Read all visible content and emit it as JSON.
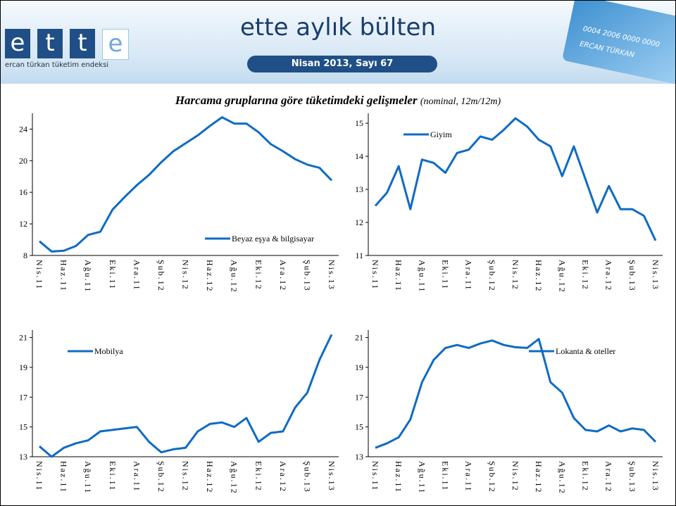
{
  "header": {
    "logo": [
      "e",
      "t",
      "t",
      "e"
    ],
    "logo_subtitle": "ercan türkan tüketim endeksi",
    "title": "ette aylık bülten",
    "subtitle": "Nisan 2013, Sayı 67",
    "card_number": "0004 2006 0000 0000",
    "card_name": "ERCAN TÜRKAN"
  },
  "title": "Harcama gruplarına göre tüketimdeki gelişmeler",
  "subtitle": "(nominal, 12m/12m)",
  "chart_data": [
    {
      "type": "line",
      "categories": [
        "Nis.11",
        null,
        "Haz.11",
        null,
        "Ağu.11",
        null,
        "Eki.11",
        null,
        "Ara.11",
        null,
        "Şub.12",
        null,
        "Nis.12",
        null,
        "Haz.12",
        null,
        "Ağu.12",
        null,
        "Eki.12",
        null,
        "Ara.12",
        null,
        "Şub.13",
        null,
        "Nis.13"
      ],
      "series": [
        {
          "name": "Beyaz eşya & bilgisayar",
          "color": "#0e6bc4",
          "values": [
            9.8,
            8.5,
            8.6,
            9.2,
            10.6,
            11.0,
            13.8,
            15.4,
            16.9,
            18.2,
            19.8,
            21.2,
            22.2,
            23.2,
            24.4,
            25.5,
            24.7,
            24.7,
            23.6,
            22.1,
            21.2,
            20.2,
            19.5,
            19.1,
            17.5
          ]
        }
      ],
      "ylim": [
        8,
        26
      ],
      "yticks": [
        8,
        12,
        16,
        20,
        24
      ],
      "legend": "lower right"
    },
    {
      "type": "line",
      "categories": [
        "Nis.11",
        null,
        "Haz.11",
        null,
        "Ağu.11",
        null,
        "Eki.11",
        null,
        "Ara.11",
        null,
        "Şub.12",
        null,
        "Nis.12",
        null,
        "Haz.12",
        null,
        "Ağu.12",
        null,
        "Eki.12",
        null,
        "Ara.12",
        null,
        "Şub.13",
        null,
        "Nis.13"
      ],
      "series": [
        {
          "name": "Giyim",
          "color": "#0e6bc4",
          "values": [
            12.5,
            12.9,
            13.7,
            12.4,
            13.9,
            13.8,
            13.5,
            14.1,
            14.2,
            14.6,
            14.5,
            14.8,
            15.15,
            14.9,
            14.5,
            14.3,
            13.4,
            14.3,
            13.3,
            12.3,
            13.1,
            12.4,
            12.4,
            12.2,
            11.45
          ]
        }
      ],
      "ylim": [
        11,
        15.3
      ],
      "yticks": [
        11,
        12,
        13,
        14,
        15
      ],
      "legend": "upper left"
    },
    {
      "type": "line",
      "categories": [
        "Nis.11",
        null,
        "Haz.11",
        null,
        "Ağu.11",
        null,
        "Eki.11",
        null,
        "Ara.11",
        null,
        "Şub.12",
        null,
        "Nis.12",
        null,
        "Haz.12",
        null,
        "Ağu.12",
        null,
        "Eki.12",
        null,
        "Ara.12",
        null,
        "Şub.13",
        null,
        "Nis.13"
      ],
      "series": [
        {
          "name": "Mobilya",
          "color": "#0e6bc4",
          "values": [
            13.7,
            13.0,
            13.6,
            13.9,
            14.1,
            14.7,
            14.8,
            14.9,
            15.0,
            14.0,
            13.3,
            13.5,
            13.6,
            14.7,
            15.2,
            15.3,
            15.0,
            15.6,
            14.0,
            14.6,
            14.7,
            16.3,
            17.3,
            19.5,
            21.2
          ]
        }
      ],
      "ylim": [
        13,
        21.5
      ],
      "yticks": [
        13,
        15,
        17,
        19,
        21
      ],
      "legend": "upper left"
    },
    {
      "type": "line",
      "categories": [
        "Nis.11",
        null,
        "Haz.11",
        null,
        "Ağu.11",
        null,
        "Eki.11",
        null,
        "Ara.11",
        null,
        "Şub.12",
        null,
        "Nis.12",
        null,
        "Haz.12",
        null,
        "Ağu.12",
        null,
        "Eki.12",
        null,
        "Ara.12",
        null,
        "Şub.13",
        null,
        "Nis.13"
      ],
      "series": [
        {
          "name": "Lokanta & oteller",
          "color": "#0e6bc4",
          "values": [
            13.6,
            13.9,
            14.3,
            15.5,
            18.0,
            19.5,
            20.3,
            20.5,
            20.3,
            20.6,
            20.8,
            20.5,
            20.35,
            20.3,
            20.9,
            18.0,
            17.3,
            15.6,
            14.8,
            14.7,
            15.1,
            14.7,
            14.9,
            14.8,
            14.0
          ]
        }
      ],
      "ylim": [
        13,
        21.5
      ],
      "yticks": [
        13,
        15,
        17,
        19,
        21
      ],
      "legend": "upper right"
    }
  ]
}
